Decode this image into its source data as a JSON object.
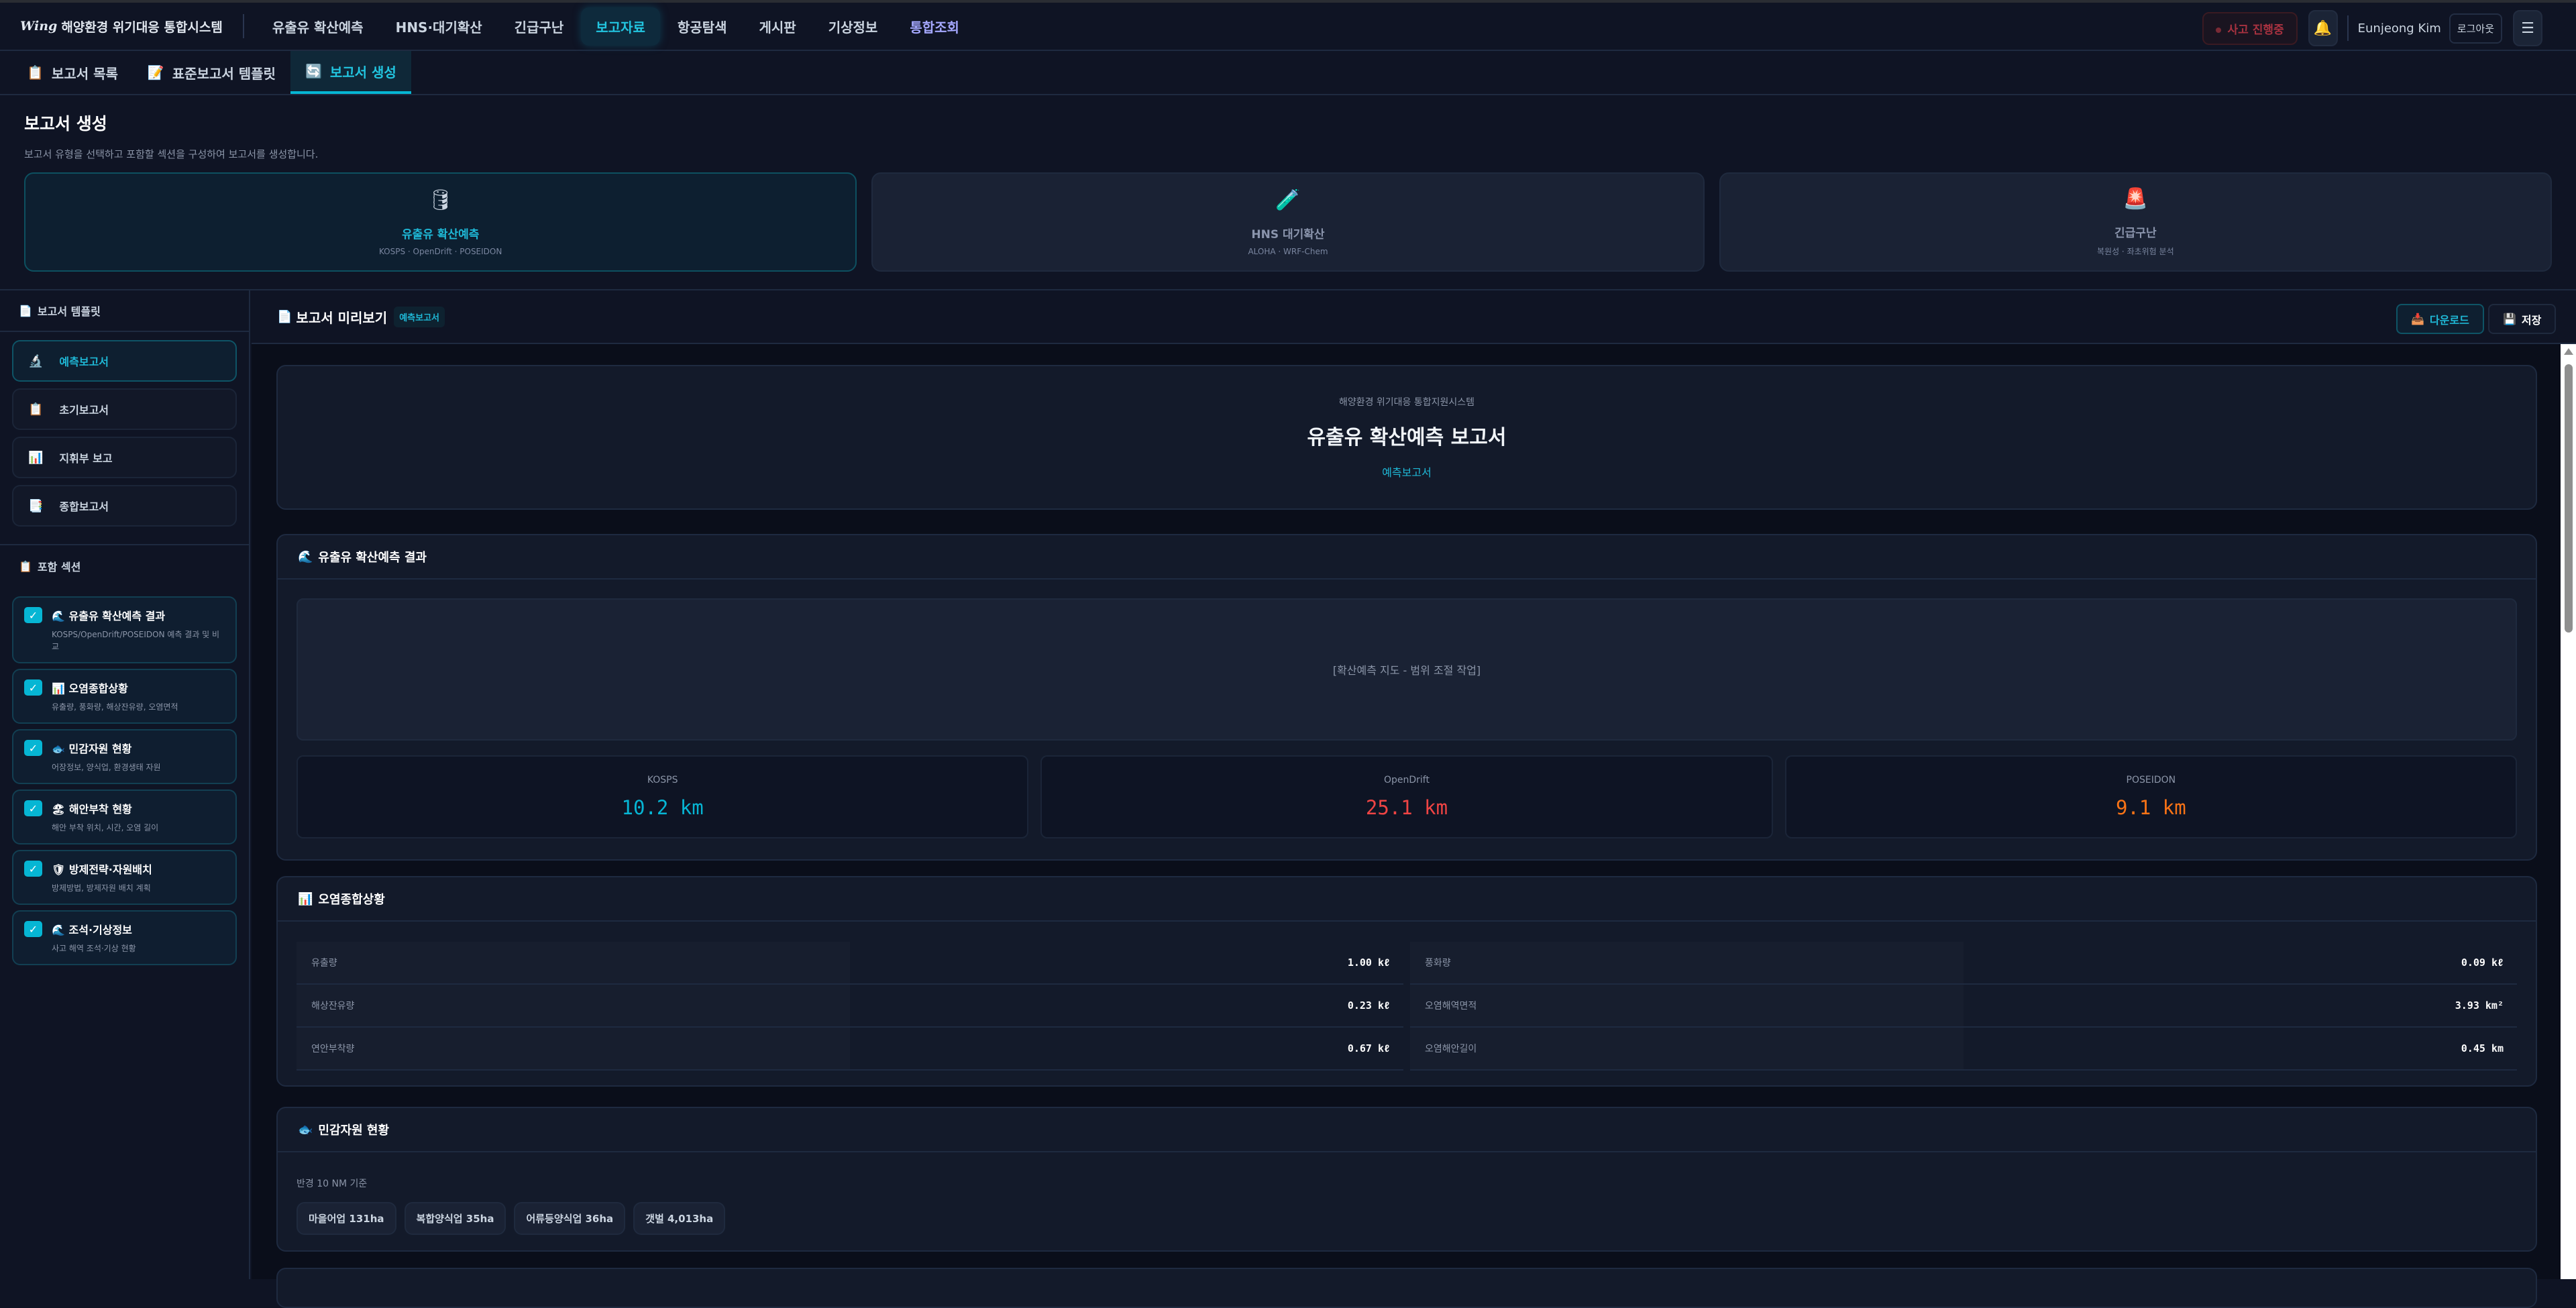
{
  "app": {
    "logo_mark": "Wing",
    "title": "해양환경 위기대응 통합시스템"
  },
  "nav": [
    {
      "label": "유출유 확산예측"
    },
    {
      "label": "HNS·대기확산"
    },
    {
      "label": "긴급구난"
    },
    {
      "label": "보고자료",
      "active": true
    },
    {
      "label": "항공탐색"
    },
    {
      "label": "게시판"
    },
    {
      "label": "기상정보"
    },
    {
      "label": "통합조회"
    }
  ],
  "topright": {
    "incident": "사고 진행중",
    "user": "Eunjeong Kim",
    "logout": "로그아웃"
  },
  "subtabs": [
    {
      "label": "보고서 목록",
      "icon": "clipboard-icon"
    },
    {
      "label": "표준보고서 템플릿",
      "icon": "document-pen-icon"
    },
    {
      "label": "보고서 생성",
      "icon": "refresh-icon",
      "active": true
    }
  ],
  "header": {
    "title": "보고서 생성",
    "desc": "보고서 유형을 선택하고 포함할 섹션을 구성하여 보고서를 생성합니다."
  },
  "types": [
    {
      "name": "유출유 확산예측",
      "sub": "KOSPS · OpenDrift · POSEIDON",
      "icon": "oil-drum-icon",
      "glyph": "🛢",
      "selected": true
    },
    {
      "name": "HNS 대기확산",
      "sub": "ALOHA · WRF-Chem",
      "icon": "test-tube-icon",
      "glyph": "🧪"
    },
    {
      "name": "긴급구난",
      "sub": "복원성 · 좌초위험 분석",
      "icon": "siren-icon",
      "glyph": "🚨"
    }
  ],
  "sidebar": {
    "templates_title": "보고서 템플릿",
    "templates": [
      {
        "label": "예측보고서",
        "glyph": "🔬",
        "selected": true
      },
      {
        "label": "초기보고서",
        "glyph": "📋"
      },
      {
        "label": "지휘부 보고",
        "glyph": "📊"
      },
      {
        "label": "종합보고서",
        "glyph": "📑"
      }
    ],
    "sections_title": "포함 섹션",
    "sections": [
      {
        "title": "유출유 확산예측 결과",
        "desc": "KOSPS/OpenDrift/POSEIDON 예측 결과 및 비교",
        "glyph": "🌊",
        "checked": true
      },
      {
        "title": "오염종합상황",
        "desc": "유출량, 풍화량, 해상잔유량, 오염면적",
        "glyph": "📊",
        "checked": true
      },
      {
        "title": "민감자원 현황",
        "desc": "어장정보, 양식업, 환경생태 자원",
        "glyph": "🐟",
        "checked": true
      },
      {
        "title": "해안부착 현황",
        "desc": "해안 부착 위치, 시간, 오염 길이",
        "glyph": "🏖",
        "checked": true
      },
      {
        "title": "방제전략·자원배치",
        "desc": "방제방법, 방제자원 배치 계획",
        "glyph": "🛡",
        "checked": true
      },
      {
        "title": "조석·기상정보",
        "desc": "사고 해역 조석·기상 현황",
        "glyph": "🌊",
        "checked": true
      }
    ]
  },
  "preview": {
    "title": "보고서 미리보기",
    "badge": "예측보고서",
    "download": "다운로드",
    "save": "저장",
    "cover": {
      "org": "해양환경 위기대응 통합지원시스템",
      "title": "유출유 확산예측 보고서",
      "kind": "예측보고서"
    },
    "sec1": {
      "title": "유출유 확산예측 결과",
      "map": "[확산예측 지도 - 범위 조절 작업]",
      "models": [
        {
          "name": "KOSPS",
          "value": "10.2 km",
          "color": "#06b6d4"
        },
        {
          "name": "OpenDrift",
          "value": "25.1 km",
          "color": "#ef4444"
        },
        {
          "name": "POSEIDON",
          "value": "9.1 km",
          "color": "#f97316"
        }
      ]
    },
    "sec2": {
      "title": "오염종합상황",
      "left": [
        {
          "label": "유출량",
          "value": "1.00 kℓ"
        },
        {
          "label": "해상잔유량",
          "value": "0.23 kℓ"
        },
        {
          "label": "연안부착량",
          "value": "0.67 kℓ"
        }
      ],
      "right": [
        {
          "label": "풍화량",
          "value": "0.09 kℓ"
        },
        {
          "label": "오염해역면적",
          "value": "3.93 km²"
        },
        {
          "label": "오염해안길이",
          "value": "0.45 km"
        }
      ]
    },
    "sec3": {
      "title": "민감자원 현황",
      "note": "반경 10 NM 기준",
      "chips": [
        "마을어업 131ha",
        "복합양식업 35ha",
        "어류등양식업 36ha",
        "갯벌 4,013ha"
      ]
    }
  },
  "colors": {
    "accent": "#06b6d4",
    "bg": "#0f1424",
    "danger": "#ef4444",
    "warn": "#f97316"
  }
}
